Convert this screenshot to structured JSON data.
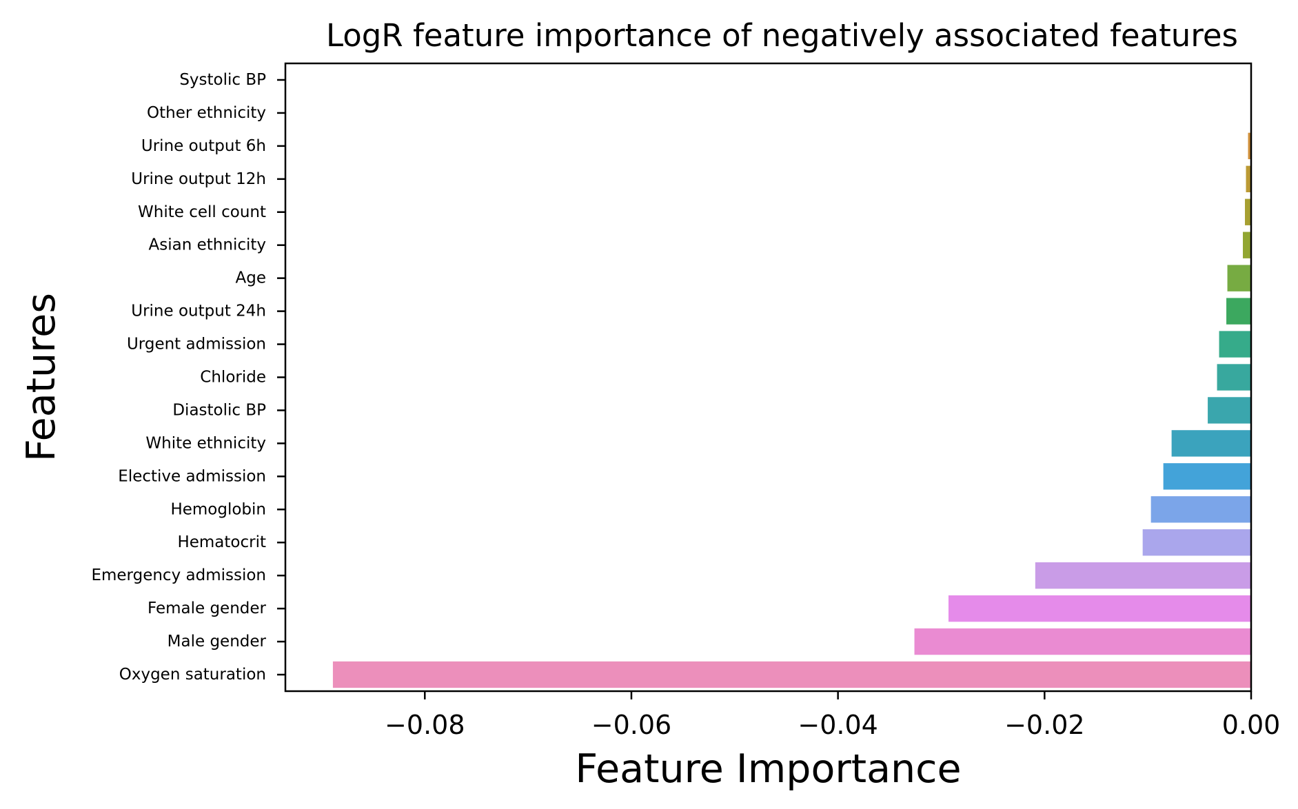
{
  "chart_data": {
    "type": "bar",
    "orientation": "horizontal",
    "title": "LogR feature importance of negatively associated features",
    "xlabel": "Feature Importance",
    "ylabel": "Features",
    "xlim": [
      -0.0935,
      0.0
    ],
    "xticks": [
      -0.08,
      -0.06,
      -0.04,
      -0.02,
      0.0
    ],
    "xtick_labels": [
      "−0.08",
      "−0.06",
      "−0.04",
      "−0.02",
      "0.00"
    ],
    "grid": false,
    "categories": [
      "Systolic BP",
      "Other ethnicity",
      "Urine output 6h",
      "Urine output 12h",
      "White cell count",
      "Asian ethnicity",
      "Age",
      "Urine output 24h",
      "Urgent admission",
      "Chloride",
      "Diastolic BP",
      "White ethnicity",
      "Elective admission",
      "Hemoglobin",
      "Hematocrit",
      "Emergency admission",
      "Female gender",
      "Male gender",
      "Oxygen saturation"
    ],
    "values": [
      0.0,
      0.0,
      -0.0003,
      -0.0005,
      -0.0006,
      -0.0008,
      -0.0023,
      -0.0024,
      -0.0031,
      -0.0033,
      -0.0042,
      -0.0077,
      -0.0085,
      -0.0097,
      -0.0105,
      -0.0209,
      -0.0293,
      -0.0326,
      -0.0889
    ],
    "colors": [
      "#f77189",
      "#e7843b",
      "#d1913c",
      "#bb9a34",
      "#a7a032",
      "#92a632",
      "#77ab42",
      "#3ca85f",
      "#36ab8a",
      "#38a89e",
      "#3aa6ad",
      "#3ba3bd",
      "#43a3d9",
      "#7ba5e9",
      "#aaa6ec",
      "#c99ce7",
      "#e58bea",
      "#ea8bd2",
      "#ec8fbb"
    ]
  }
}
